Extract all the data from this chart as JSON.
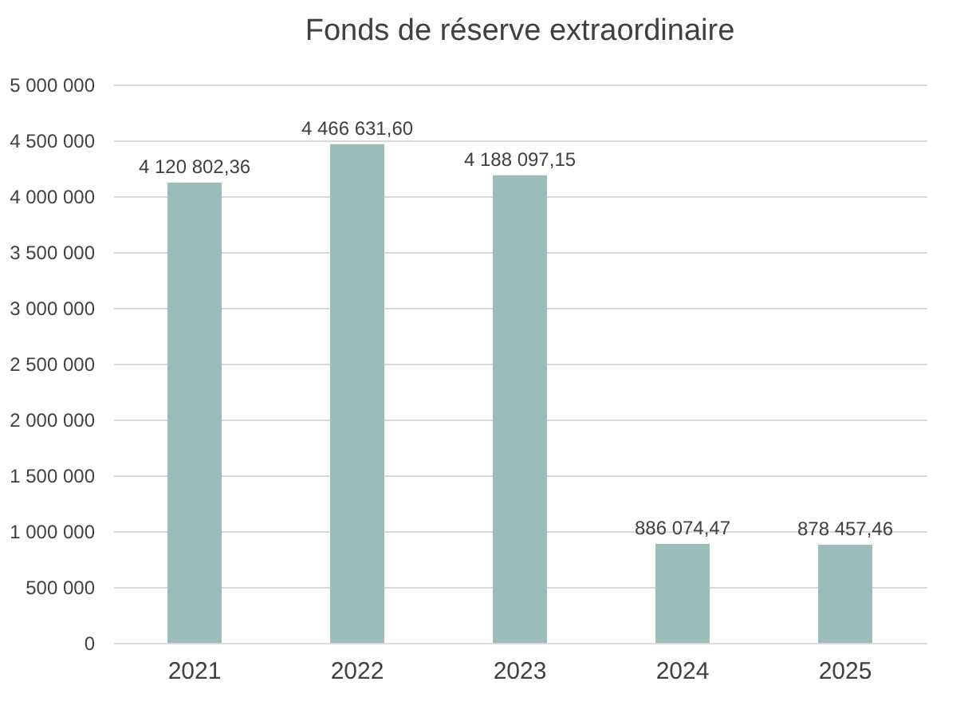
{
  "chart_data": {
    "type": "bar",
    "title": "Fonds de réserve extraordinaire",
    "categories": [
      "2021",
      "2022",
      "2023",
      "2024",
      "2025"
    ],
    "values": [
      4120802.36,
      4466631.6,
      4188097.15,
      886074.47,
      878457.46
    ],
    "value_labels": [
      "4 120 802,36",
      "4 466 631,60",
      "4 188 097,15",
      "886 074,47",
      "878 457,46"
    ],
    "color": "#9bbcb9",
    "ylim": [
      0,
      5000000
    ],
    "yticks": [
      0,
      {
        "value": 500000,
        "label": "500 000"
      },
      {
        "value": 1000000,
        "label": "1 000 000"
      },
      {
        "value": 1500000,
        "label": "1 500 000"
      },
      {
        "value": 2000000,
        "label": "2 000 000"
      },
      {
        "value": 2500000,
        "label": "2 500 000"
      },
      {
        "value": 3000000,
        "label": "3 000 000"
      },
      {
        "value": 3500000,
        "label": "3 500 000"
      },
      {
        "value": 4000000,
        "label": "4 000 000"
      },
      {
        "value": 4500000,
        "label": "4 500 000"
      },
      {
        "value": 5000000,
        "label": "5 000 000"
      }
    ],
    "grid": "y"
  }
}
